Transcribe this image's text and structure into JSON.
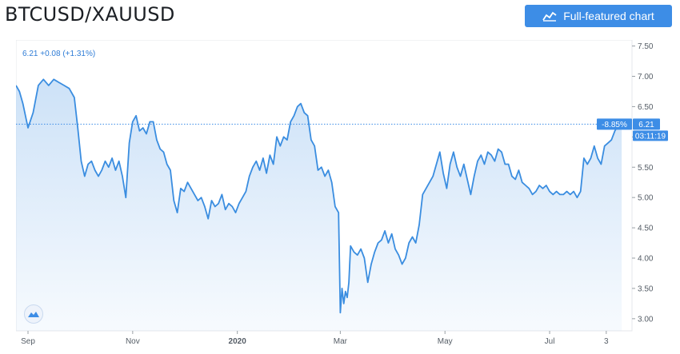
{
  "header": {
    "title": "BTCUSD/XAUUSD",
    "cta_label": "Full-featured chart"
  },
  "legend": {
    "text": "6.21  +0.08 (+1.31%)"
  },
  "price_tags": {
    "change": "-8.85%",
    "last": "6.21",
    "countdown": "03:11:19"
  },
  "colors": {
    "accent": "#3d8de6",
    "line": "#3a8de0",
    "area": "#dceaf9"
  },
  "icons": {
    "cta": "chart-line-icon",
    "logo": "tradingview-logo-icon"
  },
  "chart_data": {
    "type": "area",
    "title": "",
    "xlabel": "",
    "ylabel": "",
    "ylim": [
      2.8,
      7.6
    ],
    "yticks": [
      "7.50",
      "7.00",
      "6.50",
      "6.00",
      "5.50",
      "5.00",
      "4.50",
      "4.00",
      "3.50",
      "3.00"
    ],
    "x_ticks": [
      {
        "label": "Sep",
        "t": 0
      },
      {
        "label": "Nov",
        "t": 61
      },
      {
        "label": "2020",
        "t": 122
      },
      {
        "label": "Mar",
        "t": 182
      },
      {
        "label": "May",
        "t": 243
      },
      {
        "label": "Jul",
        "t": 304
      },
      {
        "label": "3",
        "t": 337
      }
    ],
    "series": [
      {
        "values": [
          [
            -7,
            6.85
          ],
          [
            -5,
            6.75
          ],
          [
            -3,
            6.55
          ],
          [
            0,
            6.15
          ],
          [
            3,
            6.4
          ],
          [
            6,
            6.85
          ],
          [
            9,
            6.95
          ],
          [
            12,
            6.85
          ],
          [
            15,
            6.95
          ],
          [
            18,
            6.9
          ],
          [
            21,
            6.85
          ],
          [
            24,
            6.8
          ],
          [
            27,
            6.65
          ],
          [
            29,
            6.15
          ],
          [
            31,
            5.6
          ],
          [
            33,
            5.35
          ],
          [
            35,
            5.55
          ],
          [
            37,
            5.6
          ],
          [
            39,
            5.45
          ],
          [
            41,
            5.35
          ],
          [
            43,
            5.45
          ],
          [
            45,
            5.6
          ],
          [
            47,
            5.5
          ],
          [
            49,
            5.65
          ],
          [
            51,
            5.45
          ],
          [
            53,
            5.6
          ],
          [
            55,
            5.35
          ],
          [
            57,
            5.0
          ],
          [
            59,
            5.9
          ],
          [
            61,
            6.25
          ],
          [
            63,
            6.35
          ],
          [
            65,
            6.1
          ],
          [
            67,
            6.15
          ],
          [
            69,
            6.05
          ],
          [
            71,
            6.25
          ],
          [
            73,
            6.25
          ],
          [
            75,
            5.95
          ],
          [
            77,
            5.8
          ],
          [
            79,
            5.75
          ],
          [
            81,
            5.55
          ],
          [
            83,
            5.45
          ],
          [
            85,
            4.95
          ],
          [
            87,
            4.75
          ],
          [
            89,
            5.15
          ],
          [
            91,
            5.1
          ],
          [
            93,
            5.25
          ],
          [
            95,
            5.15
          ],
          [
            97,
            5.05
          ],
          [
            99,
            4.95
          ],
          [
            101,
            5.0
          ],
          [
            103,
            4.85
          ],
          [
            105,
            4.65
          ],
          [
            107,
            4.95
          ],
          [
            109,
            4.85
          ],
          [
            111,
            4.9
          ],
          [
            113,
            5.05
          ],
          [
            115,
            4.8
          ],
          [
            117,
            4.9
          ],
          [
            119,
            4.85
          ],
          [
            121,
            4.75
          ],
          [
            123,
            4.9
          ],
          [
            125,
            5.0
          ],
          [
            127,
            5.1
          ],
          [
            129,
            5.35
          ],
          [
            131,
            5.5
          ],
          [
            133,
            5.6
          ],
          [
            135,
            5.45
          ],
          [
            137,
            5.65
          ],
          [
            139,
            5.4
          ],
          [
            141,
            5.7
          ],
          [
            143,
            5.55
          ],
          [
            145,
            6.0
          ],
          [
            147,
            5.85
          ],
          [
            149,
            6.0
          ],
          [
            151,
            5.95
          ],
          [
            153,
            6.25
          ],
          [
            155,
            6.35
          ],
          [
            157,
            6.5
          ],
          [
            159,
            6.55
          ],
          [
            161,
            6.4
          ],
          [
            163,
            6.35
          ],
          [
            165,
            5.95
          ],
          [
            167,
            5.85
          ],
          [
            169,
            5.45
          ],
          [
            171,
            5.5
          ],
          [
            173,
            5.35
          ],
          [
            175,
            5.45
          ],
          [
            177,
            5.25
          ],
          [
            179,
            4.85
          ],
          [
            181,
            4.75
          ],
          [
            182,
            3.1
          ],
          [
            183,
            3.5
          ],
          [
            184,
            3.25
          ],
          [
            185,
            3.45
          ],
          [
            186,
            3.35
          ],
          [
            187,
            3.6
          ],
          [
            188,
            4.2
          ],
          [
            190,
            4.1
          ],
          [
            192,
            4.05
          ],
          [
            194,
            4.15
          ],
          [
            196,
            4.0
          ],
          [
            198,
            3.6
          ],
          [
            200,
            3.9
          ],
          [
            202,
            4.1
          ],
          [
            204,
            4.25
          ],
          [
            206,
            4.3
          ],
          [
            208,
            4.45
          ],
          [
            210,
            4.25
          ],
          [
            212,
            4.4
          ],
          [
            214,
            4.15
          ],
          [
            216,
            4.05
          ],
          [
            218,
            3.9
          ],
          [
            220,
            4.0
          ],
          [
            222,
            4.25
          ],
          [
            224,
            4.35
          ],
          [
            226,
            4.25
          ],
          [
            228,
            4.55
          ],
          [
            230,
            5.05
          ],
          [
            232,
            5.15
          ],
          [
            234,
            5.25
          ],
          [
            236,
            5.35
          ],
          [
            238,
            5.55
          ],
          [
            240,
            5.75
          ],
          [
            242,
            5.4
          ],
          [
            244,
            5.15
          ],
          [
            246,
            5.55
          ],
          [
            248,
            5.75
          ],
          [
            250,
            5.5
          ],
          [
            252,
            5.35
          ],
          [
            254,
            5.55
          ],
          [
            256,
            5.3
          ],
          [
            258,
            5.05
          ],
          [
            260,
            5.35
          ],
          [
            262,
            5.6
          ],
          [
            264,
            5.7
          ],
          [
            266,
            5.55
          ],
          [
            268,
            5.75
          ],
          [
            270,
            5.7
          ],
          [
            272,
            5.6
          ],
          [
            274,
            5.8
          ],
          [
            276,
            5.75
          ],
          [
            278,
            5.55
          ],
          [
            280,
            5.55
          ],
          [
            282,
            5.35
          ],
          [
            284,
            5.3
          ],
          [
            286,
            5.45
          ],
          [
            288,
            5.25
          ],
          [
            290,
            5.2
          ],
          [
            292,
            5.15
          ],
          [
            294,
            5.05
          ],
          [
            296,
            5.1
          ],
          [
            298,
            5.2
          ],
          [
            300,
            5.15
          ],
          [
            302,
            5.2
          ],
          [
            304,
            5.1
          ],
          [
            306,
            5.05
          ],
          [
            308,
            5.1
          ],
          [
            310,
            5.05
          ],
          [
            312,
            5.05
          ],
          [
            314,
            5.1
          ],
          [
            316,
            5.05
          ],
          [
            318,
            5.1
          ],
          [
            320,
            5.0
          ],
          [
            322,
            5.1
          ],
          [
            324,
            5.65
          ],
          [
            326,
            5.55
          ],
          [
            328,
            5.65
          ],
          [
            330,
            5.85
          ],
          [
            332,
            5.65
          ],
          [
            334,
            5.55
          ],
          [
            336,
            5.85
          ],
          [
            338,
            5.9
          ],
          [
            340,
            5.95
          ],
          [
            342,
            6.1
          ],
          [
            344,
            6.2
          ],
          [
            346,
            6.25
          ]
        ]
      }
    ],
    "last_value": 6.21,
    "legend": "none",
    "grid": false
  }
}
